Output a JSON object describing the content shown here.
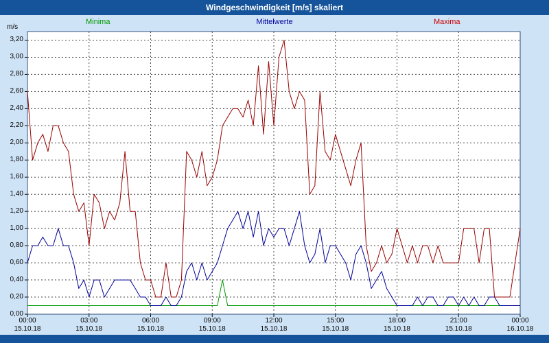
{
  "title_bar": {
    "title": "Windgeschwindigkeit [m/s] skaliert"
  },
  "legend": {
    "minima": "Minima",
    "mittelwerte": "Mittelwerte",
    "maxima": "Maxima"
  },
  "axis": {
    "unit_label": "m/s",
    "y_ticks": [
      {
        "label": "0,00",
        "value": 0.0
      },
      {
        "label": "0,20",
        "value": 0.2
      },
      {
        "label": "0,40",
        "value": 0.4
      },
      {
        "label": "0,60",
        "value": 0.6
      },
      {
        "label": "0,80",
        "value": 0.8
      },
      {
        "label": "1,00",
        "value": 1.0
      },
      {
        "label": "1,20",
        "value": 1.2
      },
      {
        "label": "1,40",
        "value": 1.4
      },
      {
        "label": "1,60",
        "value": 1.6
      },
      {
        "label": "1,80",
        "value": 1.8
      },
      {
        "label": "2,00",
        "value": 2.0
      },
      {
        "label": "2,20",
        "value": 2.2
      },
      {
        "label": "2,40",
        "value": 2.4
      },
      {
        "label": "2,60",
        "value": 2.6
      },
      {
        "label": "2,80",
        "value": 2.8
      },
      {
        "label": "3,00",
        "value": 3.0
      },
      {
        "label": "3,20",
        "value": 3.2
      }
    ],
    "x_ticks": [
      {
        "time": "00:00",
        "date": "15.10.18",
        "hour": 0
      },
      {
        "time": "03:00",
        "date": "15.10.18",
        "hour": 3
      },
      {
        "time": "06:00",
        "date": "15.10.18",
        "hour": 6
      },
      {
        "time": "09:00",
        "date": "15.10.18",
        "hour": 9
      },
      {
        "time": "12:00",
        "date": "15.10.18",
        "hour": 12
      },
      {
        "time": "15:00",
        "date": "15.10.18",
        "hour": 15
      },
      {
        "time": "18:00",
        "date": "15.10.18",
        "hour": 18
      },
      {
        "time": "21:00",
        "date": "15.10.18",
        "hour": 21
      },
      {
        "time": "00:00",
        "date": "16.10.18",
        "hour": 24
      }
    ]
  },
  "colors": {
    "background": "#cfe3f6",
    "titlebar": "#15549a",
    "plot_border": "#33517a",
    "grid": "#444444",
    "minima": "#009900",
    "mittelwerte": "#000099",
    "maxima": "#990000"
  },
  "chart_data": {
    "type": "line",
    "title": "Windgeschwindigkeit [m/s] skaliert",
    "xlabel": "",
    "ylabel": "m/s",
    "x_range": [
      0,
      24
    ],
    "ylim": [
      0,
      3.3
    ],
    "interval_minutes": 15,
    "grid": true,
    "legend_position": "top",
    "series": [
      {
        "name": "Minima",
        "color": "#009900",
        "values": [
          0.1,
          0.1,
          0.1,
          0.1,
          0.1,
          0.1,
          0.1,
          0.1,
          0.1,
          0.1,
          0.1,
          0.1,
          0.1,
          0.1,
          0.1,
          0.1,
          0.1,
          0.1,
          0.1,
          0.1,
          0.1,
          0.1,
          0.1,
          0.1,
          0.1,
          0.1,
          0.1,
          0.1,
          0.1,
          0.1,
          0.1,
          0.1,
          0.1,
          0.1,
          0.1,
          0.1,
          0.1,
          0.1,
          0.4,
          0.1,
          0.1,
          0.1,
          0.1,
          0.1,
          0.1,
          0.1,
          0.1,
          0.1,
          0.1,
          0.1,
          0.1,
          0.1,
          0.1,
          0.1,
          0.1,
          0.1,
          0.1,
          0.1,
          0.1,
          0.1,
          0.1,
          0.1,
          0.1,
          0.1,
          0.1,
          0.1,
          0.1,
          0.1,
          0.1,
          0.1,
          0.1,
          0.1,
          0.1,
          0.1,
          0.1,
          0.1,
          0.1,
          0.1,
          0.1,
          0.1,
          0.1,
          0.1,
          0.1,
          0.1,
          0.1,
          0.1,
          0.1,
          0.1,
          0.1,
          0.1,
          0.1,
          0.1,
          0.1,
          0.1,
          0.1,
          0.1,
          0.1
        ]
      },
      {
        "name": "Mittelwerte",
        "color": "#000099",
        "values": [
          0.6,
          0.8,
          0.8,
          0.9,
          0.8,
          0.8,
          1.0,
          0.8,
          0.8,
          0.6,
          0.3,
          0.4,
          0.2,
          0.4,
          0.4,
          0.2,
          0.3,
          0.4,
          0.4,
          0.4,
          0.4,
          0.3,
          0.2,
          0.2,
          0.1,
          0.1,
          0.1,
          0.2,
          0.1,
          0.1,
          0.2,
          0.5,
          0.6,
          0.4,
          0.6,
          0.4,
          0.5,
          0.6,
          0.8,
          1.0,
          1.1,
          1.2,
          1.0,
          1.2,
          0.9,
          1.2,
          0.8,
          1.0,
          0.9,
          1.0,
          1.0,
          0.8,
          1.0,
          1.2,
          0.8,
          0.6,
          0.7,
          1.0,
          0.6,
          0.8,
          0.8,
          0.7,
          0.6,
          0.4,
          0.7,
          0.8,
          0.6,
          0.3,
          0.4,
          0.5,
          0.3,
          0.2,
          0.1,
          0.1,
          0.1,
          0.1,
          0.2,
          0.1,
          0.2,
          0.2,
          0.1,
          0.1,
          0.2,
          0.2,
          0.1,
          0.2,
          0.1,
          0.2,
          0.1,
          0.1,
          0.2,
          0.2,
          0.1,
          0.1,
          0.1,
          0.1,
          0.1
        ]
      },
      {
        "name": "Maxima",
        "color": "#990000",
        "values": [
          2.6,
          1.8,
          2.0,
          2.1,
          1.9,
          2.2,
          2.2,
          2.0,
          1.9,
          1.4,
          1.2,
          1.3,
          0.8,
          1.4,
          1.3,
          1.0,
          1.2,
          1.1,
          1.3,
          1.9,
          1.2,
          1.2,
          0.6,
          0.4,
          0.4,
          0.2,
          0.2,
          0.6,
          0.2,
          0.2,
          0.4,
          1.9,
          1.8,
          1.6,
          1.9,
          1.5,
          1.6,
          1.8,
          2.2,
          2.3,
          2.4,
          2.4,
          2.3,
          2.5,
          2.2,
          2.9,
          2.1,
          2.95,
          2.2,
          3.0,
          3.2,
          2.6,
          2.4,
          2.6,
          2.5,
          1.4,
          1.5,
          2.6,
          1.9,
          1.8,
          2.1,
          1.9,
          1.7,
          1.5,
          1.8,
          2.0,
          0.8,
          0.5,
          0.6,
          0.8,
          0.6,
          0.7,
          1.0,
          0.8,
          0.6,
          0.8,
          0.6,
          0.8,
          0.8,
          0.6,
          0.8,
          0.6,
          0.6,
          0.6,
          0.6,
          1.0,
          1.0,
          1.0,
          0.6,
          1.0,
          1.0,
          0.2,
          0.2,
          0.2,
          0.2,
          0.6,
          1.0
        ]
      }
    ]
  }
}
